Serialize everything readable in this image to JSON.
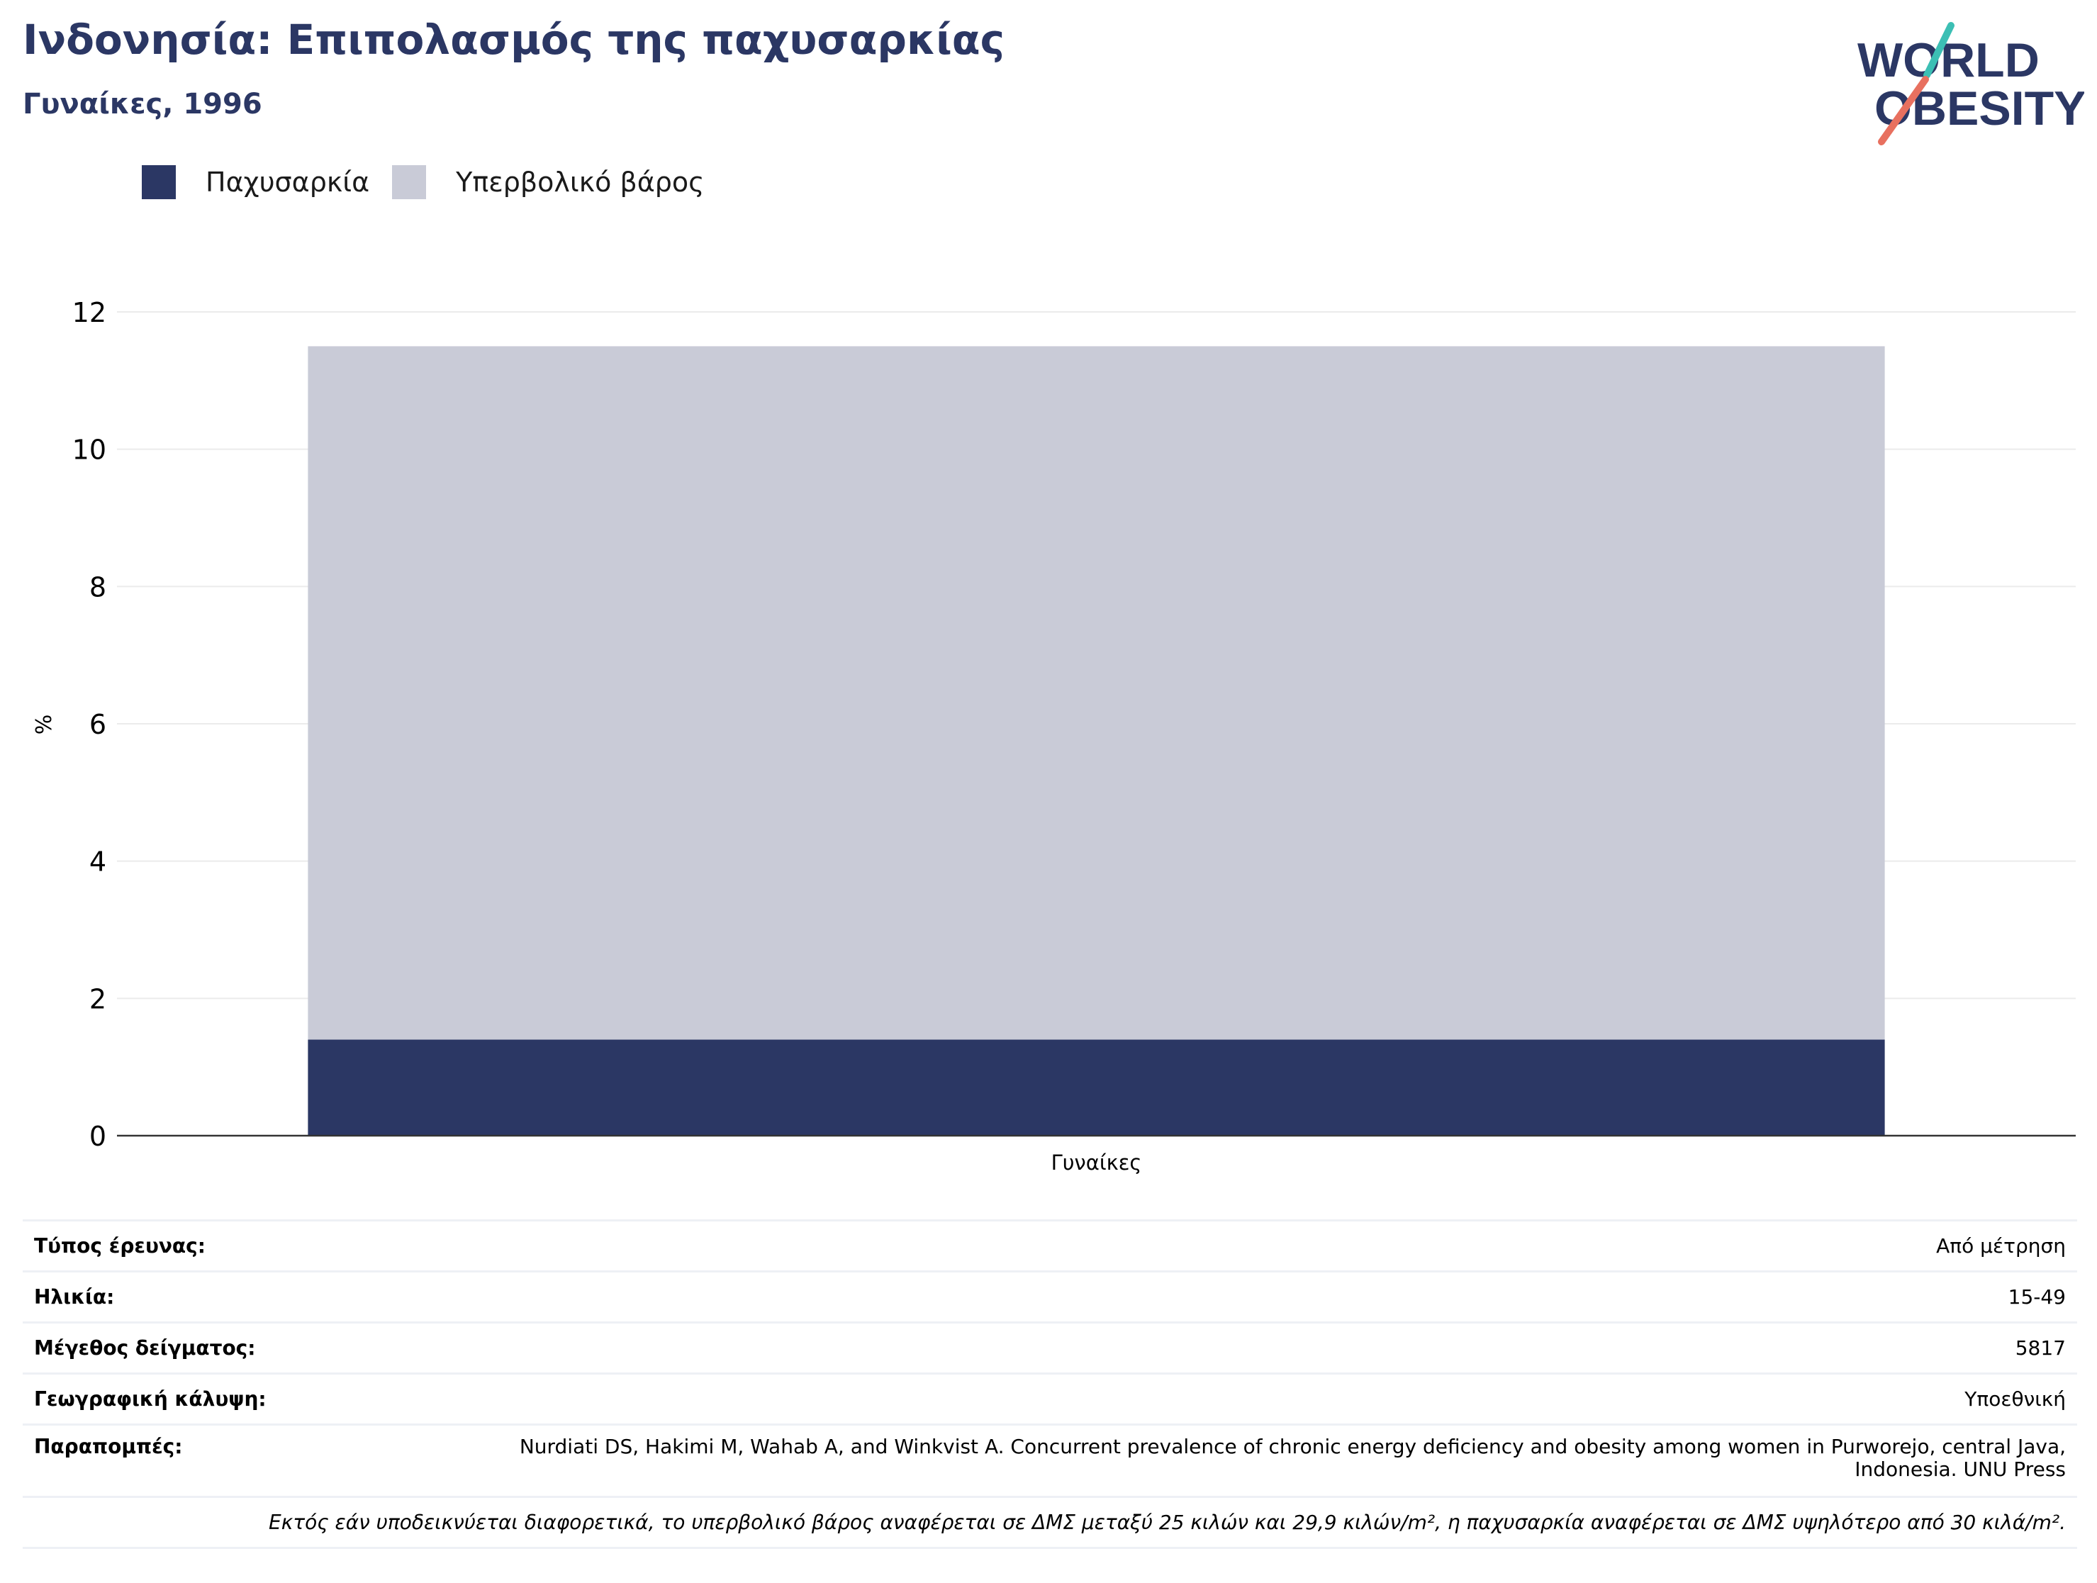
{
  "header": {
    "title": "Ινδονησία: Επιπολασμός της παχυσαρκίας",
    "subtitle": "Γυναίκες, 1996"
  },
  "logo": {
    "line1": "WORLD",
    "line2": "OBESITY",
    "accent_teal": "#3cbfb4",
    "accent_coral": "#e8705f",
    "text_color": "#2b3764"
  },
  "legend": {
    "items": [
      {
        "label": "Παχυσαρκία",
        "color": "#2b3764"
      },
      {
        "label": "Υπερβολικό βάρος",
        "color": "#c9cbd7"
      }
    ]
  },
  "chart_data": {
    "type": "bar",
    "stacked": true,
    "categories": [
      "Γυναίκες"
    ],
    "series": [
      {
        "name": "Παχυσαρκία",
        "values": [
          1.4
        ],
        "color": "#2b3764"
      },
      {
        "name": "Υπερβολικό βάρος",
        "values": [
          10.1
        ],
        "color": "#c9cbd7"
      }
    ],
    "ylabel": "%",
    "ylim": [
      0,
      12
    ],
    "yticks": [
      0,
      2,
      4,
      6,
      8,
      10,
      12
    ],
    "grid": true,
    "legend_position": "top-left"
  },
  "info": {
    "rows": [
      {
        "label": "Τύπος έρευνας:",
        "value": "Από μέτρηση"
      },
      {
        "label": "Ηλικία:",
        "value": "15-49"
      },
      {
        "label": "Μέγεθος δείγματος:",
        "value": "5817"
      },
      {
        "label": "Γεωγραφική κάλυψη:",
        "value": "Υποεθνική"
      }
    ],
    "references_label": "Παραπομπές:",
    "references_value": "Nurdiati DS, Hakimi M, Wahab A, and Winkvist A. Concurrent prevalence of chronic energy deficiency and obesity among women in Purworejo, central Java, Indonesia. UNU Press",
    "note": "Εκτός εάν υποδεικνύεται διαφορετικά, το υπερβολικό βάρος αναφέρεται σε ΔΜΣ μεταξύ 25 κιλών και 29,9 κιλών/m², η παχυσαρκία αναφέρεται σε ΔΜΣ υψηλότερο από 30 κιλά/m²."
  }
}
